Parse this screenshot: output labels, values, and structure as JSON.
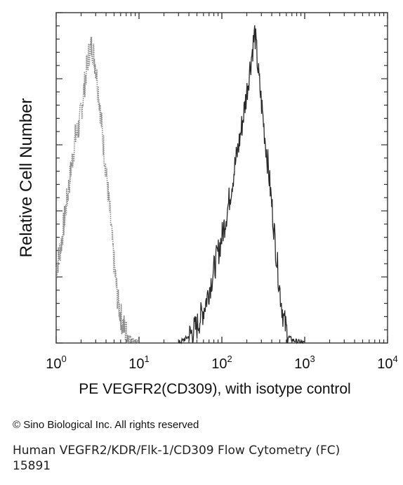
{
  "chart_data": {
    "type": "line",
    "title": "",
    "xlabel": "PE VEGFR2(CD309), with isotype control",
    "ylabel": "Relative Cell Number",
    "x_scale": "log",
    "xlim": [
      1,
      10000
    ],
    "ylim": [
      0,
      100
    ],
    "grid": false,
    "x_ticks": [
      {
        "base": "10",
        "exp": "0",
        "value": 1
      },
      {
        "base": "10",
        "exp": "1",
        "value": 10
      },
      {
        "base": "10",
        "exp": "2",
        "value": 100
      },
      {
        "base": "10",
        "exp": "3",
        "value": 1000
      },
      {
        "base": "10",
        "exp": "4",
        "value": 10000
      }
    ],
    "series": [
      {
        "color": "#8a8a8a",
        "style": "dotted",
        "x": [
          1.0,
          1.15,
          1.3,
          1.5,
          1.7,
          1.9,
          2.1,
          2.3,
          2.5,
          2.7,
          3.0,
          3.3,
          3.6,
          4.0,
          4.5,
          5.0,
          5.6,
          6.3,
          7.0,
          8.0,
          9.0,
          10.0
        ],
        "y": [
          22,
          30,
          40,
          52,
          62,
          66,
          74,
          82,
          88,
          90,
          84,
          74,
          64,
          52,
          38,
          24,
          12,
          6,
          3,
          1.5,
          0.5,
          0
        ]
      },
      {
        "color": "#2a2a2a",
        "style": "solid",
        "x": [
          30,
          35,
          40,
          50,
          60,
          70,
          80,
          100,
          120,
          140,
          160,
          180,
          200,
          220,
          250,
          280,
          320,
          360,
          400,
          450,
          500,
          560,
          630,
          700,
          800,
          900,
          1000
        ],
        "y": [
          0,
          1,
          2,
          5,
          10,
          16,
          22,
          32,
          42,
          52,
          60,
          68,
          76,
          84,
          94,
          80,
          66,
          54,
          42,
          28,
          16,
          7,
          2,
          1,
          0.5,
          0.2,
          0
        ]
      }
    ]
  },
  "copyright": "© Sino Biological Inc. All rights reserved",
  "caption": {
    "line1": "Human VEGFR2/KDR/Flk-1/CD309 Flow Cytometry (FC)",
    "line2": "15891"
  }
}
